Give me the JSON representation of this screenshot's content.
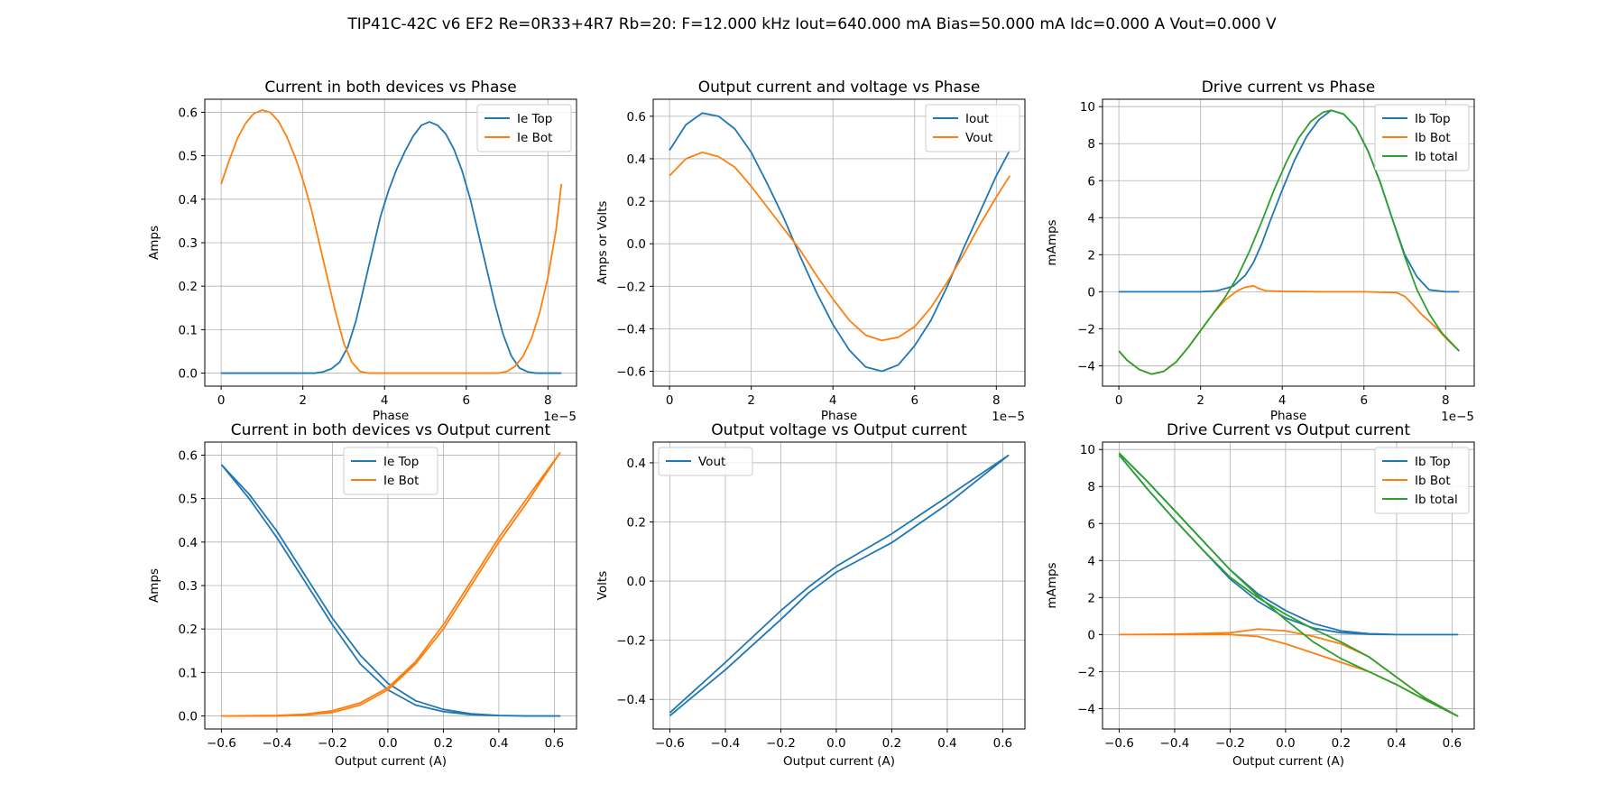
{
  "figure_title": "TIP41C-42C v6 EF2 Re=0R33+4R7 Rb=20: F=12.000 kHz Iout=640.000 mA Bias=50.000 mA Idc=0.000 A Vout=0.000 V",
  "colors": {
    "c0": "#1f77b4",
    "c1": "#ff7f0e",
    "c2": "#2ca02c",
    "grid": "#b0b0b0"
  },
  "chart_data": [
    {
      "type": "line",
      "title": "Current in both devices vs Phase",
      "xlabel": "Phase",
      "ylabel": "Amps",
      "xlim": [
        -4e-06,
        8.7e-05
      ],
      "ylim": [
        -0.03,
        0.63
      ],
      "xticks": [
        0,
        2e-05,
        4e-05,
        6e-05,
        8e-05
      ],
      "xticklabels": [
        "0",
        "2",
        "4",
        "6",
        "8"
      ],
      "x_offset_label": "1e−5",
      "yticks": [
        0.0,
        0.1,
        0.2,
        0.3,
        0.4,
        0.5,
        0.6
      ],
      "yticklabels": [
        "0.0",
        "0.1",
        "0.2",
        "0.3",
        "0.4",
        "0.5",
        "0.6"
      ],
      "legend": "upper right",
      "grid": true,
      "series": [
        {
          "name": "Ie Top",
          "color": "#1f77b4",
          "x": [
            0,
            2.3e-05,
            2.5e-05,
            2.7e-05,
            2.9e-05,
            3.1e-05,
            3.3e-05,
            3.5e-05,
            3.7e-05,
            3.9e-05,
            4.1e-05,
            4.3e-05,
            4.5e-05,
            4.7e-05,
            4.9e-05,
            5.1e-05,
            5.3e-05,
            5.5e-05,
            5.7e-05,
            5.9e-05,
            6.1e-05,
            6.3e-05,
            6.5e-05,
            6.7e-05,
            6.9e-05,
            7.1e-05,
            7.3e-05,
            7.5e-05,
            7.7e-05,
            8.33e-05
          ],
          "y": [
            0.0,
            0.0,
            0.003,
            0.01,
            0.025,
            0.06,
            0.12,
            0.2,
            0.28,
            0.36,
            0.42,
            0.47,
            0.51,
            0.545,
            0.57,
            0.578,
            0.57,
            0.55,
            0.515,
            0.465,
            0.4,
            0.32,
            0.24,
            0.16,
            0.09,
            0.04,
            0.012,
            0.003,
            0.0,
            0.0
          ]
        },
        {
          "name": "Ie Bot",
          "color": "#ff7f0e",
          "x": [
            0,
            2e-06,
            4e-06,
            6e-06,
            8e-06,
            1e-05,
            1.2e-05,
            1.4e-05,
            1.6e-05,
            1.8e-05,
            2e-05,
            2.2e-05,
            2.4e-05,
            2.6e-05,
            2.8e-05,
            3e-05,
            3.2e-05,
            3.4e-05,
            3.6e-05,
            4e-05,
            5e-05,
            6e-05,
            6.8e-05,
            7e-05,
            7.2e-05,
            7.4e-05,
            7.6e-05,
            7.8e-05,
            8e-05,
            8.2e-05,
            8.33e-05
          ],
          "y": [
            0.435,
            0.49,
            0.54,
            0.575,
            0.597,
            0.605,
            0.6,
            0.58,
            0.545,
            0.5,
            0.445,
            0.38,
            0.3,
            0.22,
            0.14,
            0.07,
            0.025,
            0.004,
            0.0,
            0.0,
            0.0,
            0.0,
            0.0,
            0.004,
            0.016,
            0.04,
            0.08,
            0.14,
            0.22,
            0.33,
            0.435
          ]
        }
      ]
    },
    {
      "type": "line",
      "title": "Output current and voltage vs Phase",
      "xlabel": "Phase",
      "ylabel": "Amps or Volts",
      "xlim": [
        -4e-06,
        8.7e-05
      ],
      "ylim": [
        -0.67,
        0.68
      ],
      "xticks": [
        0,
        2e-05,
        4e-05,
        6e-05,
        8e-05
      ],
      "xticklabels": [
        "0",
        "2",
        "4",
        "6",
        "8"
      ],
      "x_offset_label": "1e−5",
      "yticks": [
        -0.6,
        -0.4,
        -0.2,
        0.0,
        0.2,
        0.4,
        0.6
      ],
      "yticklabels": [
        "−0.6",
        "−0.4",
        "−0.2",
        "0.0",
        "0.2",
        "0.4",
        "0.6"
      ],
      "legend": "upper right",
      "grid": true,
      "series": [
        {
          "name": "Iout",
          "color": "#1f77b4",
          "x": [
            0,
            4e-06,
            8e-06,
            1.2e-05,
            1.6e-05,
            2e-05,
            2.4e-05,
            2.8e-05,
            3.2e-05,
            3.6e-05,
            4e-05,
            4.4e-05,
            4.8e-05,
            5.2e-05,
            5.6e-05,
            6e-05,
            6.4e-05,
            6.8e-05,
            7.2e-05,
            7.6e-05,
            8e-05,
            8.33e-05
          ],
          "y": [
            0.44,
            0.56,
            0.615,
            0.6,
            0.54,
            0.43,
            0.28,
            0.12,
            -0.06,
            -0.23,
            -0.38,
            -0.5,
            -0.58,
            -0.6,
            -0.57,
            -0.48,
            -0.36,
            -0.2,
            -0.02,
            0.15,
            0.32,
            0.44
          ]
        },
        {
          "name": "Vout",
          "color": "#ff7f0e",
          "x": [
            0,
            4e-06,
            8e-06,
            1.2e-05,
            1.6e-05,
            2e-05,
            2.4e-05,
            2.8e-05,
            3.2e-05,
            3.6e-05,
            4e-05,
            4.4e-05,
            4.8e-05,
            5.2e-05,
            5.6e-05,
            6e-05,
            6.4e-05,
            6.8e-05,
            7.2e-05,
            7.6e-05,
            8e-05,
            8.33e-05
          ],
          "y": [
            0.32,
            0.4,
            0.43,
            0.41,
            0.36,
            0.27,
            0.17,
            0.07,
            -0.03,
            -0.15,
            -0.26,
            -0.36,
            -0.43,
            -0.455,
            -0.44,
            -0.39,
            -0.3,
            -0.18,
            -0.05,
            0.09,
            0.22,
            0.32
          ]
        }
      ]
    },
    {
      "type": "line",
      "title": "Drive current vs Phase",
      "xlabel": "Phase",
      "ylabel": "mAmps",
      "xlim": [
        -4e-06,
        8.7e-05
      ],
      "ylim": [
        -5.1,
        10.4
      ],
      "xticks": [
        0,
        2e-05,
        4e-05,
        6e-05,
        8e-05
      ],
      "xticklabels": [
        "0",
        "2",
        "4",
        "6",
        "8"
      ],
      "x_offset_label": "1e−5",
      "yticks": [
        -4,
        -2,
        0,
        2,
        4,
        6,
        8,
        10
      ],
      "yticklabels": [
        "−4",
        "−2",
        "0",
        "2",
        "4",
        "6",
        "8",
        "10"
      ],
      "legend": "upper right",
      "grid": true,
      "series": [
        {
          "name": "Ib Top",
          "color": "#1f77b4",
          "x": [
            0,
            2e-05,
            2.4e-05,
            2.8e-05,
            3.1e-05,
            3.3e-05,
            3.5e-05,
            3.7e-05,
            4e-05,
            4.3e-05,
            4.6e-05,
            4.9e-05,
            5.2e-05,
            5.5e-05,
            5.8e-05,
            6.1e-05,
            6.4e-05,
            6.7e-05,
            7e-05,
            7.3e-05,
            7.6e-05,
            8e-05,
            8.33e-05
          ],
          "y": [
            0.0,
            0.0,
            0.05,
            0.3,
            0.9,
            1.6,
            2.6,
            3.8,
            5.5,
            7.1,
            8.4,
            9.3,
            9.8,
            9.6,
            8.9,
            7.6,
            5.9,
            3.9,
            2.0,
            0.8,
            0.1,
            0.0,
            0.0
          ]
        },
        {
          "name": "Ib Bot",
          "color": "#ff7f0e",
          "x": [
            0,
            2e-06,
            5e-06,
            8e-06,
            1.1e-05,
            1.4e-05,
            1.7e-05,
            2e-05,
            2.3e-05,
            2.6e-05,
            2.9e-05,
            3.1e-05,
            3.3e-05,
            3.4e-05,
            3.6e-05,
            4e-05,
            5e-05,
            6e-05,
            6.8e-05,
            7e-05,
            7.2e-05,
            7.4e-05,
            7.6e-05,
            7.8e-05,
            8e-05,
            8.33e-05
          ],
          "y": [
            -3.2,
            -3.7,
            -4.2,
            -4.45,
            -4.3,
            -3.8,
            -3.0,
            -2.1,
            -1.2,
            -0.45,
            0.05,
            0.25,
            0.32,
            0.2,
            0.05,
            0.02,
            0.0,
            0.0,
            -0.05,
            -0.25,
            -0.7,
            -1.2,
            -1.6,
            -2.0,
            -2.5,
            -3.2
          ]
        },
        {
          "name": "Ib total",
          "color": "#2ca02c",
          "x": [
            0,
            2e-06,
            5e-06,
            8e-06,
            1.1e-05,
            1.4e-05,
            1.7e-05,
            2e-05,
            2.3e-05,
            2.6e-05,
            2.9e-05,
            3.2e-05,
            3.5e-05,
            3.8e-05,
            4.1e-05,
            4.4e-05,
            4.7e-05,
            5e-05,
            5.2e-05,
            5.5e-05,
            5.8e-05,
            6.1e-05,
            6.4e-05,
            6.7e-05,
            7e-05,
            7.3e-05,
            7.6e-05,
            7.9e-05,
            8.2e-05,
            8.33e-05
          ],
          "y": [
            -3.2,
            -3.7,
            -4.2,
            -4.45,
            -4.3,
            -3.8,
            -3.0,
            -2.1,
            -1.2,
            -0.3,
            0.8,
            2.2,
            3.8,
            5.5,
            7.0,
            8.3,
            9.2,
            9.7,
            9.8,
            9.6,
            8.9,
            7.6,
            5.9,
            3.9,
            1.9,
            0.1,
            -1.2,
            -2.2,
            -2.9,
            -3.2
          ]
        }
      ]
    },
    {
      "type": "line",
      "title": "Current in both devices vs Output current",
      "xlabel": "Output current (A)",
      "ylabel": "Amps",
      "xlim": [
        -0.66,
        0.68
      ],
      "ylim": [
        -0.03,
        0.63
      ],
      "xticks": [
        -0.6,
        -0.4,
        -0.2,
        0.0,
        0.2,
        0.4,
        0.6
      ],
      "xticklabels": [
        "−0.6",
        "−0.4",
        "−0.2",
        "0.0",
        "0.2",
        "0.4",
        "0.6"
      ],
      "yticks": [
        0.0,
        0.1,
        0.2,
        0.3,
        0.4,
        0.5,
        0.6
      ],
      "yticklabels": [
        "0.0",
        "0.1",
        "0.2",
        "0.3",
        "0.4",
        "0.5",
        "0.6"
      ],
      "legend": "upper center",
      "grid": true,
      "series": [
        {
          "name": "Ie Top",
          "color": "#1f77b4",
          "x": [
            -0.6,
            -0.5,
            -0.4,
            -0.3,
            -0.2,
            -0.1,
            0.0,
            0.1,
            0.2,
            0.3,
            0.4,
            0.5,
            0.62,
            0.5,
            0.4,
            0.3,
            0.2,
            0.1,
            0.0,
            -0.1,
            -0.2,
            -0.3,
            -0.4,
            -0.5,
            -0.6
          ],
          "y": [
            0.578,
            0.5,
            0.41,
            0.31,
            0.21,
            0.12,
            0.06,
            0.025,
            0.01,
            0.003,
            0.001,
            0.0,
            0.0,
            0.0,
            0.001,
            0.005,
            0.015,
            0.035,
            0.075,
            0.14,
            0.225,
            0.325,
            0.425,
            0.51,
            0.578
          ]
        },
        {
          "name": "Ie Bot",
          "color": "#ff7f0e",
          "x": [
            -0.6,
            -0.4,
            -0.3,
            -0.2,
            -0.1,
            0.0,
            0.1,
            0.2,
            0.3,
            0.4,
            0.5,
            0.62,
            0.5,
            0.4,
            0.3,
            0.2,
            0.1,
            0.0,
            -0.1,
            -0.2,
            -0.3,
            -0.4,
            -0.6
          ],
          "y": [
            0.0,
            0.0,
            0.002,
            0.008,
            0.025,
            0.06,
            0.12,
            0.2,
            0.3,
            0.4,
            0.49,
            0.605,
            0.5,
            0.41,
            0.31,
            0.21,
            0.125,
            0.065,
            0.03,
            0.012,
            0.004,
            0.001,
            0.0
          ]
        }
      ]
    },
    {
      "type": "line",
      "title": "Output voltage vs Output current",
      "xlabel": "Output current (A)",
      "ylabel": "Volts",
      "xlim": [
        -0.66,
        0.68
      ],
      "ylim": [
        -0.5,
        0.47
      ],
      "xticks": [
        -0.6,
        -0.4,
        -0.2,
        0.0,
        0.2,
        0.4,
        0.6
      ],
      "xticklabels": [
        "−0.6",
        "−0.4",
        "−0.2",
        "0.0",
        "0.2",
        "0.4",
        "0.6"
      ],
      "yticks": [
        -0.4,
        -0.2,
        0.0,
        0.2,
        0.4
      ],
      "yticklabels": [
        "−0.4",
        "−0.2",
        "0.0",
        "0.2",
        "0.4"
      ],
      "legend": "upper left",
      "grid": true,
      "series": [
        {
          "name": "Vout",
          "color": "#1f77b4",
          "x": [
            -0.6,
            -0.4,
            -0.2,
            -0.1,
            0.0,
            0.1,
            0.2,
            0.4,
            0.62,
            0.4,
            0.2,
            0.1,
            0.0,
            -0.1,
            -0.2,
            -0.4,
            -0.6
          ],
          "y": [
            -0.455,
            -0.3,
            -0.13,
            -0.04,
            0.03,
            0.08,
            0.13,
            0.26,
            0.425,
            0.285,
            0.16,
            0.105,
            0.05,
            -0.02,
            -0.1,
            -0.275,
            -0.445
          ]
        }
      ]
    },
    {
      "type": "line",
      "title": "Drive Current vs Output current",
      "xlabel": "Output current (A)",
      "ylabel": "mAmps",
      "xlim": [
        -0.66,
        0.68
      ],
      "ylim": [
        -5.1,
        10.4
      ],
      "xticks": [
        -0.6,
        -0.4,
        -0.2,
        0.0,
        0.2,
        0.4,
        0.6
      ],
      "xticklabels": [
        "−0.6",
        "−0.4",
        "−0.2",
        "0.0",
        "0.2",
        "0.4",
        "0.6"
      ],
      "yticks": [
        -4,
        -2,
        0,
        2,
        4,
        6,
        8,
        10
      ],
      "yticklabels": [
        "−4",
        "−2",
        "0",
        "2",
        "4",
        "6",
        "8",
        "10"
      ],
      "legend": "upper right",
      "grid": true,
      "series": [
        {
          "name": "Ib Top",
          "color": "#1f77b4",
          "x": [
            -0.6,
            -0.5,
            -0.4,
            -0.3,
            -0.2,
            -0.1,
            0.0,
            0.1,
            0.2,
            0.3,
            0.4,
            0.62,
            0.4,
            0.3,
            0.2,
            0.1,
            0.0,
            -0.1,
            -0.2,
            -0.3,
            -0.4,
            -0.5,
            -0.6
          ],
          "y": [
            9.8,
            8.3,
            6.7,
            5.1,
            3.5,
            2.2,
            1.3,
            0.6,
            0.2,
            0.05,
            0.0,
            0.0,
            0.0,
            0.02,
            0.1,
            0.35,
            0.9,
            1.8,
            3.0,
            4.6,
            6.2,
            7.9,
            9.7
          ]
        },
        {
          "name": "Ib Bot",
          "color": "#ff7f0e",
          "x": [
            -0.6,
            -0.4,
            -0.2,
            -0.1,
            0.0,
            0.1,
            0.2,
            0.3,
            0.4,
            0.5,
            0.62,
            0.5,
            0.4,
            0.3,
            0.2,
            0.1,
            0.0,
            -0.1,
            -0.2,
            -0.4,
            -0.6
          ],
          "y": [
            0.0,
            0.0,
            0.0,
            -0.1,
            -0.5,
            -1.0,
            -1.5,
            -2.0,
            -2.7,
            -3.5,
            -4.4,
            -3.4,
            -2.3,
            -1.2,
            -0.5,
            -0.1,
            0.2,
            0.3,
            0.1,
            0.02,
            0.0
          ]
        },
        {
          "name": "Ib total",
          "color": "#2ca02c",
          "x": [
            -0.6,
            -0.5,
            -0.4,
            -0.3,
            -0.2,
            -0.1,
            0.0,
            0.1,
            0.2,
            0.3,
            0.4,
            0.5,
            0.62,
            0.5,
            0.4,
            0.3,
            0.2,
            0.1,
            0.0,
            -0.1,
            -0.2,
            -0.3,
            -0.4,
            -0.5,
            -0.6
          ],
          "y": [
            9.8,
            8.3,
            6.7,
            5.1,
            3.5,
            2.1,
            0.8,
            -0.4,
            -1.3,
            -2.0,
            -2.7,
            -3.5,
            -4.4,
            -3.4,
            -2.3,
            -1.2,
            -0.4,
            0.3,
            1.1,
            2.0,
            3.1,
            4.6,
            6.2,
            7.9,
            9.7
          ]
        }
      ]
    }
  ]
}
